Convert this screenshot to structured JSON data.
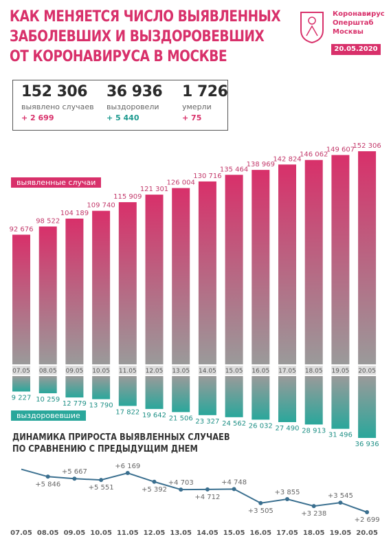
{
  "header": {
    "title_lines": [
      "КАК МЕНЯЕТСЯ ЧИСЛО ВЫЯВЛЕННЫХ",
      "ЗАБОЛЕВШИХ И ВЫЗДОРОВЕВШИХ",
      "ОТ КОРОНАВИРУСА В МОСКВЕ"
    ],
    "logo_lines": [
      "Коронавирус",
      "Оперштаб",
      "Москвы"
    ],
    "date": "20.05.2020"
  },
  "stats": [
    {
      "value": "152 306",
      "label": "выявлено случаев",
      "delta": "+ 2 699",
      "color": "pink"
    },
    {
      "value": "36 936",
      "label": "выздоровели",
      "delta": "+ 5 440",
      "color": "teal"
    },
    {
      "value": "1 726",
      "label": "умерли",
      "delta": "+ 75",
      "color": "pink"
    }
  ],
  "labels": {
    "detected": "выявленные случаи",
    "recovered": "выздоровевшие"
  },
  "subtitle_lines": [
    "ДИНАМИКА ПРИРОСТА ВЫЯВЛЕННЫХ СЛУЧАЕВ",
    "ПО СРАВНЕНИЮ С ПРЕДЫДУЩИМ ДНЕМ"
  ],
  "colors": {
    "pink": "#d8306a",
    "teal": "#2aa79b",
    "gray": "#9a9a9a",
    "line": "#3a6f8f"
  },
  "chart_data": [
    {
      "type": "bar",
      "categories": [
        "07.05",
        "08.05",
        "09.05",
        "10.05",
        "11.05",
        "12.05",
        "13.05",
        "14.05",
        "15.05",
        "16.05",
        "17.05",
        "18.05",
        "19.05",
        "20.05"
      ],
      "series": [
        {
          "name": "выявленные случаи",
          "values": [
            92676,
            98522,
            104189,
            109740,
            115909,
            121301,
            126004,
            130716,
            135464,
            138969,
            142824,
            146062,
            149607,
            152306
          ],
          "labels": [
            "92 676",
            "98 522",
            "104 189",
            "109 740",
            "115 909",
            "121 301",
            "126 004",
            "130 716",
            "135 464",
            "138 969",
            "142 824",
            "146 062",
            "149 607",
            "152 306"
          ]
        },
        {
          "name": "выздоровевшие",
          "values": [
            9227,
            10259,
            12779,
            13790,
            17822,
            19642,
            21506,
            23327,
            24562,
            26032,
            27490,
            28913,
            31496,
            36936
          ],
          "labels": [
            "9 227",
            "10 259",
            "12 779",
            "13 790",
            "17 822",
            "19 642",
            "21 506",
            "23 327",
            "24 562",
            "26 032",
            "27 490",
            "28 913",
            "31 496",
            "36 936"
          ]
        }
      ]
    },
    {
      "type": "line",
      "categories": [
        "07.05",
        "08.05",
        "09.05",
        "10.05",
        "11.05",
        "12.05",
        "13.05",
        "14.05",
        "15.05",
        "16.05",
        "17.05",
        "18.05",
        "19.05",
        "20.05"
      ],
      "series": [
        {
          "values": [
            null,
            5846,
            5667,
            5551,
            6169,
            5392,
            4703,
            4712,
            4748,
            3505,
            3855,
            3238,
            3545,
            2699
          ],
          "labels": [
            "",
            "+5 846",
            "+5 667",
            "+5 551",
            "+6 169",
            "+5 392",
            "+4 703",
            "+4 712",
            "+4 748",
            "+3 505",
            "+3 855",
            "+3 238",
            "+3 545",
            "+2 699"
          ]
        }
      ]
    }
  ]
}
